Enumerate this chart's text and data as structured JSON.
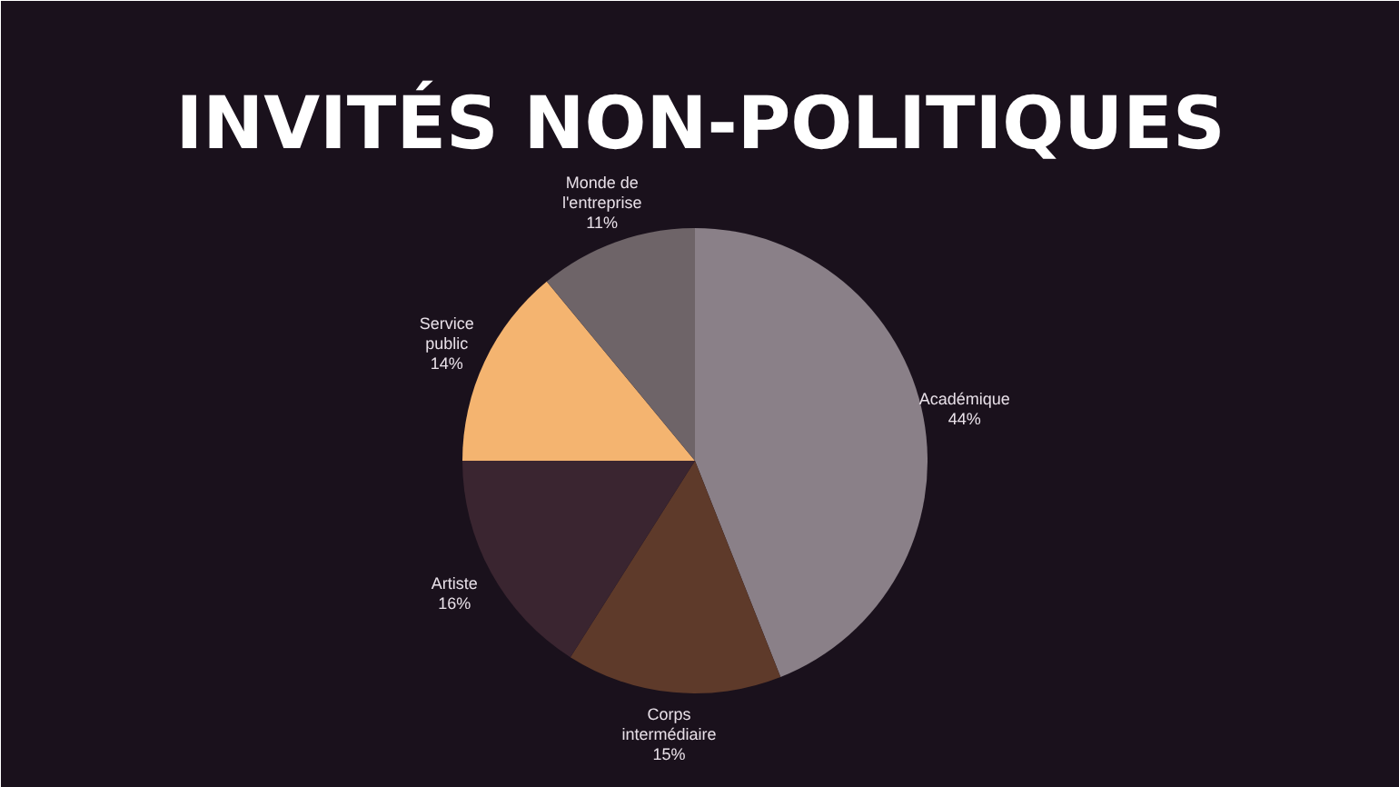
{
  "chart_data": {
    "type": "pie",
    "title": "INVITÉS NON-POLITIQUES",
    "categories": [
      "Académique",
      "Corps intermédiaire",
      "Artiste",
      "Service public",
      "Monde de l'entreprise"
    ],
    "values": [
      44,
      15,
      16,
      14,
      11
    ],
    "colors": [
      "#8a8088",
      "#5e3a2a",
      "#3a2530",
      "#f4b470",
      "#6e6468"
    ],
    "value_labels": [
      "44%",
      "15%",
      "16%",
      "14%",
      "11%"
    ],
    "legend": false
  }
}
